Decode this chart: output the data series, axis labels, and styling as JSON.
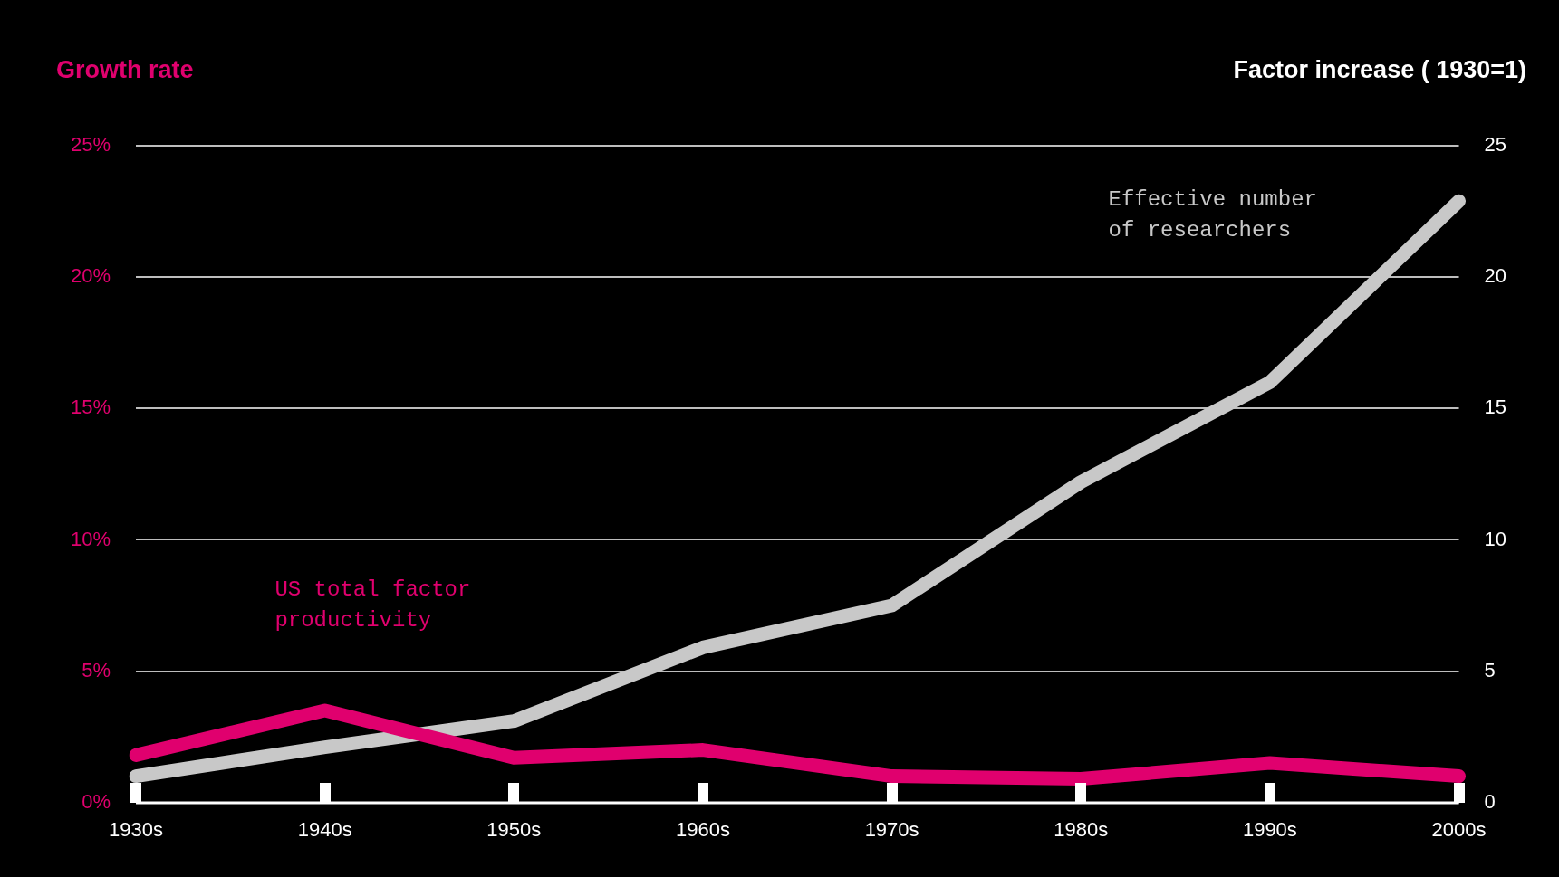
{
  "chart_data": {
    "type": "line",
    "ylabel": "Growth rate",
    "y2label": "Factor increase ( 1930=1)",
    "categories": [
      "1930s",
      "1940s",
      "1950s",
      "1960s",
      "1970s",
      "1980s",
      "1990s",
      "2000s"
    ],
    "series": [
      {
        "name": "US total factor productivity",
        "color": "#e0006e",
        "values": [
          1.8,
          3.5,
          1.7,
          2.0,
          1.0,
          0.9,
          1.5,
          1.0
        ]
      },
      {
        "name": "Effective number of researchers",
        "color": "#c8c8c8",
        "axis": "y2",
        "values": [
          1.0,
          2.1,
          3.1,
          5.9,
          7.5,
          12.2,
          16.0,
          22.9
        ]
      }
    ],
    "ylim": [
      0,
      25
    ],
    "yticks": [
      {
        "value": 0,
        "label": "0%"
      },
      {
        "value": 5,
        "label": "5%"
      },
      {
        "value": 10,
        "label": "10%"
      },
      {
        "value": 15,
        "label": "15%"
      },
      {
        "value": 20,
        "label": "20%"
      },
      {
        "value": 25,
        "label": "25%"
      }
    ],
    "y2lim": [
      0,
      25
    ],
    "y2ticks": [
      0,
      5,
      10,
      15,
      20,
      25
    ],
    "grid": "y",
    "legend": false,
    "marker": "none",
    "line_style": "solid"
  }
}
